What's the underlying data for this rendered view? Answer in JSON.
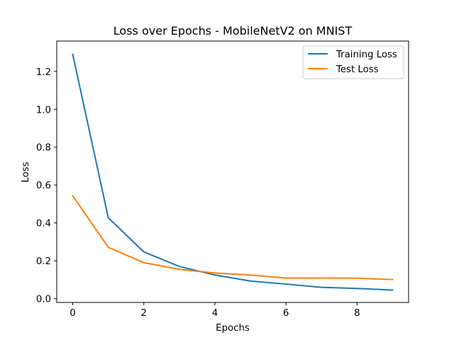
{
  "chart_data": {
    "type": "line",
    "title": "Loss over Epochs - MobileNetV2 on MNIST",
    "xlabel": "Epochs",
    "ylabel": "Loss",
    "x": [
      0,
      1,
      2,
      3,
      4,
      5,
      6,
      7,
      8,
      9
    ],
    "xlim": [
      -0.45,
      9.45
    ],
    "ylim": [
      -0.02,
      1.36
    ],
    "xticks": [
      0,
      2,
      4,
      6,
      8
    ],
    "yticks": [
      0.0,
      0.2,
      0.4,
      0.6,
      0.8,
      1.0,
      1.2
    ],
    "grid": false,
    "legend_position": "top-right",
    "series": [
      {
        "name": "Training Loss",
        "color": "#1f77b4",
        "values": [
          1.29,
          0.427,
          0.247,
          0.17,
          0.125,
          0.093,
          0.077,
          0.06,
          0.054,
          0.045
        ]
      },
      {
        "name": "Test Loss",
        "color": "#ff7f0e",
        "values": [
          0.543,
          0.271,
          0.19,
          0.155,
          0.135,
          0.125,
          0.109,
          0.109,
          0.108,
          0.101
        ]
      }
    ]
  }
}
